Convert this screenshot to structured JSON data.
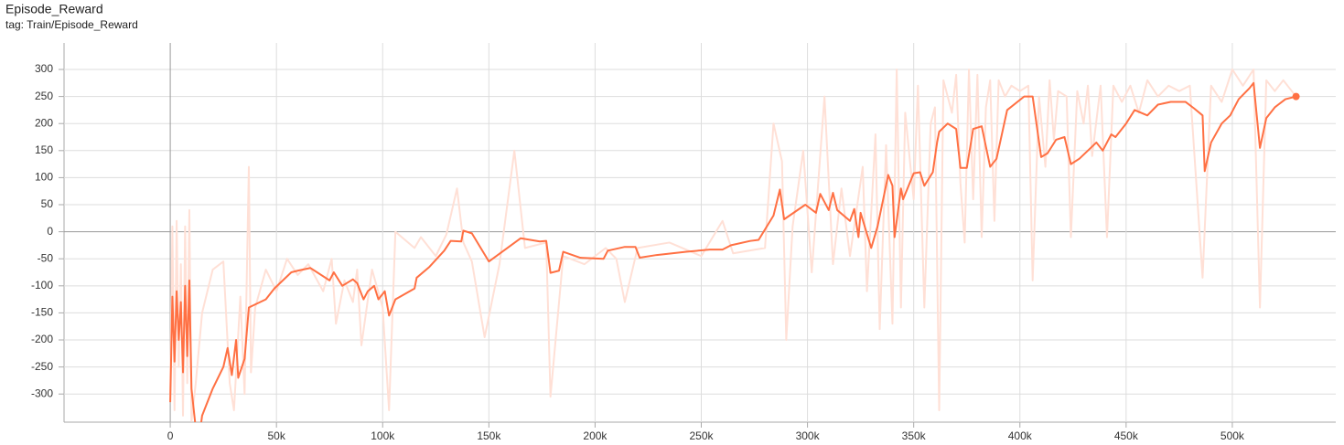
{
  "chart_data": {
    "type": "line",
    "title": "Episode_Reward",
    "subtitle": "tag: Train/Episode_Reward",
    "xlim": [
      -50000,
      548700
    ],
    "ylim": [
      -352,
      349
    ],
    "xticks": [
      0,
      {
        "value": 50000,
        "label": "50k"
      },
      {
        "value": 100000,
        "label": "100k"
      },
      {
        "value": 150000,
        "label": "150k"
      },
      {
        "value": 200000,
        "label": "200k"
      },
      {
        "value": 250000,
        "label": "250k"
      },
      {
        "value": 300000,
        "label": "300k"
      },
      {
        "value": 350000,
        "label": "350k"
      },
      {
        "value": 400000,
        "label": "400k"
      },
      {
        "value": 450000,
        "label": "450k"
      },
      {
        "value": 500000,
        "label": "500k"
      }
    ],
    "yticks": [
      -300,
      -250,
      -200,
      -150,
      -100,
      -50,
      0,
      50,
      100,
      150,
      200,
      250,
      300
    ],
    "grid": true,
    "series": [
      {
        "color": "#ffe0d6",
        "x": [
          0,
          1000,
          2000,
          3000,
          4000,
          5000,
          6000,
          7000,
          8000,
          9000,
          10000,
          12000,
          15000,
          20000,
          25000,
          28000,
          30000,
          33000,
          35000,
          37000,
          38000,
          40000,
          45000,
          50000,
          55000,
          60000,
          65000,
          72000,
          76000,
          78000,
          82000,
          86000,
          88000,
          90000,
          95000,
          100000,
          103000,
          106000,
          115000,
          118000,
          125000,
          130000,
          135000,
          138000,
          142000,
          148000,
          155000,
          162000,
          167000,
          177000,
          179000,
          185000,
          195000,
          205000,
          210000,
          214000,
          220000,
          235000,
          250000,
          260000,
          265000,
          280000,
          284000,
          288000,
          290000,
          293000,
          298000,
          302000,
          308000,
          312000,
          316000,
          320000,
          326000,
          328000,
          332000,
          334000,
          337000,
          340000,
          342000,
          344000,
          346000,
          350000,
          352000,
          355000,
          358000,
          360000,
          362000,
          364000,
          366000,
          368000,
          370000,
          372000,
          374000,
          376000,
          378000,
          380000,
          382000,
          384000,
          386000,
          388000,
          390000,
          393000,
          396000,
          400000,
          404000,
          406000,
          409000,
          412000,
          414000,
          416000,
          418000,
          422000,
          424000,
          427000,
          430000,
          432000,
          434000,
          438000,
          441000,
          444000,
          448000,
          452000,
          456000,
          460000,
          465000,
          470000,
          475000,
          480000,
          486000,
          490000,
          495000,
          500000,
          505000,
          510000,
          513000,
          516000,
          520000,
          524000,
          528000,
          530000
        ],
        "values": [
          -300,
          10,
          -330,
          20,
          -250,
          -60,
          -340,
          10,
          -280,
          40,
          -350,
          -280,
          -150,
          -70,
          -55,
          -280,
          -330,
          -120,
          -300,
          120,
          -260,
          -140,
          -70,
          -110,
          -50,
          -80,
          -60,
          -110,
          -50,
          -170,
          -90,
          -130,
          -70,
          -210,
          -70,
          -140,
          -330,
          0,
          -30,
          -10,
          -45,
          -5,
          80,
          -20,
          -55,
          -195,
          -60,
          150,
          -30,
          -20,
          -305,
          -45,
          -60,
          -30,
          -50,
          -130,
          -30,
          -20,
          -45,
          20,
          -40,
          -30,
          200,
          130,
          -200,
          10,
          150,
          -75,
          250,
          -60,
          80,
          -45,
          120,
          -110,
          180,
          -180,
          160,
          -170,
          300,
          -140,
          220,
          60,
          270,
          -140,
          200,
          230,
          -330,
          280,
          250,
          220,
          290,
          90,
          -20,
          300,
          60,
          290,
          -10,
          230,
          280,
          20,
          280,
          250,
          270,
          260,
          270,
          -90,
          250,
          120,
          280,
          170,
          260,
          250,
          -10,
          260,
          200,
          270,
          140,
          270,
          -10,
          270,
          240,
          270,
          220,
          280,
          250,
          270,
          260,
          270,
          -85,
          270,
          240,
          300,
          270,
          300,
          -140,
          280,
          260,
          280,
          260,
          250
        ]
      },
      {
        "color": "#ff7043",
        "x": [
          0,
          1000,
          2000,
          3000,
          4000,
          5000,
          6000,
          7000,
          8000,
          9000,
          10000,
          13000,
          15000,
          20000,
          25000,
          27000,
          29000,
          31000,
          32000,
          35000,
          37000,
          45000,
          49000,
          57000,
          60000,
          66000,
          75000,
          77000,
          81000,
          86000,
          88000,
          91000,
          93000,
          96000,
          98000,
          101000,
          103000,
          106000,
          115000,
          116000,
          122000,
          129000,
          132000,
          137000,
          138000,
          142000,
          150000,
          165000,
          174000,
          177000,
          179000,
          183000,
          185000,
          193000,
          204000,
          206000,
          214000,
          219000,
          221000,
          229000,
          243000,
          254000,
          260000,
          264000,
          273000,
          277000,
          284000,
          287000,
          289000,
          299000,
          304000,
          306000,
          310000,
          312000,
          314000,
          320000,
          322000,
          324000,
          325000,
          330000,
          333000,
          338000,
          340000,
          341000,
          344000,
          345000,
          350000,
          353000,
          355000,
          359000,
          361000,
          362000,
          366000,
          370000,
          372000,
          375000,
          378000,
          382000,
          386000,
          389000,
          394000,
          402000,
          406000,
          410000,
          413000,
          417000,
          421000,
          424000,
          428000,
          432000,
          436000,
          439000,
          443000,
          445000,
          450000,
          454000,
          460000,
          465000,
          471000,
          478000,
          482000,
          486000,
          487000,
          490000,
          495000,
          499000,
          503000,
          508000,
          510000,
          513000,
          516000,
          520000,
          525000,
          528000,
          530000
        ],
        "values": [
          -315,
          -120,
          -240,
          -110,
          -200,
          -130,
          -260,
          -100,
          -230,
          -90,
          -290,
          -400,
          -340,
          -290,
          -250,
          -215,
          -265,
          -200,
          -270,
          -235,
          -140,
          -125,
          -105,
          -75,
          -72,
          -67,
          -90,
          -75,
          -100,
          -88,
          -95,
          -125,
          -110,
          -100,
          -125,
          -110,
          -155,
          -125,
          -105,
          -85,
          -65,
          -35,
          -17,
          -18,
          2,
          -3,
          -55,
          -12,
          -18,
          -17,
          -76,
          -72,
          -37,
          -48,
          -50,
          -35,
          -28,
          -28,
          -48,
          -43,
          -37,
          -33,
          -33,
          -25,
          -17,
          -15,
          30,
          78,
          23,
          50,
          35,
          70,
          40,
          72,
          40,
          20,
          42,
          -10,
          35,
          -30,
          10,
          105,
          85,
          -10,
          80,
          60,
          108,
          110,
          85,
          110,
          165,
          185,
          200,
          190,
          118,
          118,
          190,
          195,
          120,
          135,
          225,
          250,
          250,
          138,
          145,
          170,
          175,
          125,
          135,
          150,
          165,
          150,
          180,
          175,
          200,
          225,
          215,
          235,
          240,
          240,
          228,
          215,
          112,
          165,
          200,
          215,
          245,
          265,
          275,
          155,
          210,
          230,
          245,
          248,
          250
        ]
      }
    ]
  }
}
